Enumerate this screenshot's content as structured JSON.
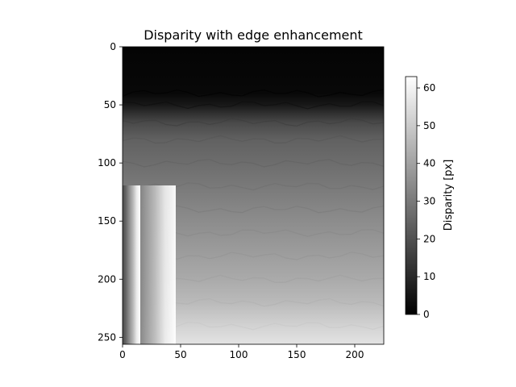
{
  "chart_data": {
    "type": "heatmap",
    "title": "Disparity with edge enhancement",
    "xlabel": "",
    "ylabel": "",
    "xlim": [
      0,
      225
    ],
    "ylim": [
      256,
      0
    ],
    "x_ticks": [
      0,
      50,
      100,
      150,
      200
    ],
    "y_ticks": [
      0,
      50,
      100,
      150,
      200,
      250
    ],
    "colormap": "gray",
    "colorbar": {
      "label": "Disparity [px]",
      "range": [
        0,
        63
      ],
      "ticks": [
        0,
        10,
        20,
        30,
        40,
        50,
        60
      ]
    },
    "disparity_profile": {
      "rows": [
        0,
        40,
        50,
        65,
        80,
        100,
        120,
        140,
        160,
        180,
        200,
        220,
        240,
        256
      ],
      "values": [
        1,
        2,
        6,
        18,
        24,
        27,
        30,
        33,
        36,
        39,
        42,
        46,
        52,
        56
      ]
    },
    "left_edge_gradient": {
      "x": [
        0,
        10,
        20,
        30,
        40,
        45
      ],
      "values": [
        18,
        26,
        36,
        46,
        58,
        63
      ]
    },
    "grid": false
  }
}
